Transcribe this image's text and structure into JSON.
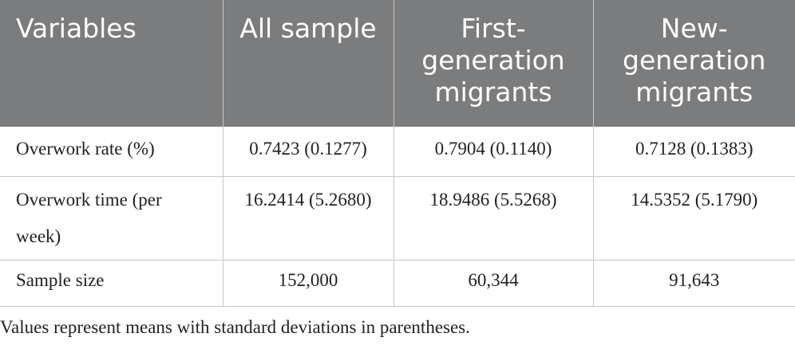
{
  "table": {
    "headers": [
      "Variables",
      "All sample",
      "First-\ngeneration\nmigrants",
      "New-\ngeneration\nmigrants"
    ],
    "rows": [
      {
        "variable": "Overwork rate (%)",
        "all_sample": "0.7423 (0.1277)",
        "first_generation": "0.7904 (0.1140)",
        "new_generation": "0.7128 (0.1383)"
      },
      {
        "variable": "Overwork time (per week)",
        "all_sample": "16.2414 (5.2680)",
        "first_generation": "18.9486 (5.5268)",
        "new_generation": "14.5352 (5.1790)"
      },
      {
        "variable": "Sample size",
        "all_sample": "152,000",
        "first_generation": "60,344",
        "new_generation": "91,643"
      }
    ]
  },
  "footnote": "Values represent means with standard deviations in parentheses.",
  "colors": {
    "header_bg": "#7b7c7d",
    "header_text": "#ffffff",
    "border": "#c8c8c8",
    "body_text": "#222222"
  }
}
